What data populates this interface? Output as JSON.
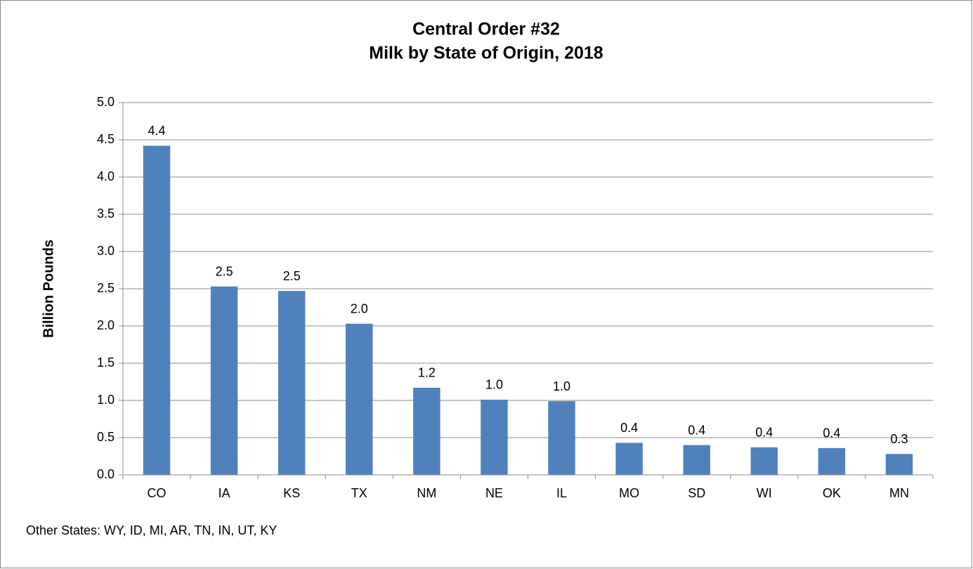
{
  "chart_data": {
    "type": "bar",
    "title": "Central Order #32",
    "subtitle": "Milk by State of Origin, 2018",
    "y_label": "Billion Pounds",
    "annotation": "Other States: WY, ID, MI, AR, TN, IN, UT, KY",
    "categories": [
      "CO",
      "IA",
      "KS",
      "TX",
      "NM",
      "NE",
      "IL",
      "MO",
      "SD",
      "WI",
      "OK",
      "MN"
    ],
    "values": [
      4.42,
      2.53,
      2.47,
      2.03,
      1.17,
      1.01,
      0.99,
      0.43,
      0.4,
      0.37,
      0.36,
      0.28
    ],
    "value_labels": [
      "4.4",
      "2.5",
      "2.5",
      "2.0",
      "1.2",
      "1.0",
      "1.0",
      "0.4",
      "0.4",
      "0.4",
      "0.4",
      "0.3"
    ],
    "color": "#4f81bd",
    "ylim": [
      0,
      5
    ],
    "yticks": [
      {
        "value": 0,
        "label": "0.0"
      },
      0.5,
      {
        "value": 1,
        "label": "1.0"
      },
      1.5,
      {
        "value": 2,
        "label": "2.0"
      },
      2.5,
      {
        "value": 3,
        "label": "3.0"
      },
      3.5,
      {
        "value": 4,
        "label": "4.0"
      },
      4.5,
      {
        "value": 5,
        "label": "5.0"
      }
    ],
    "grid": true
  }
}
